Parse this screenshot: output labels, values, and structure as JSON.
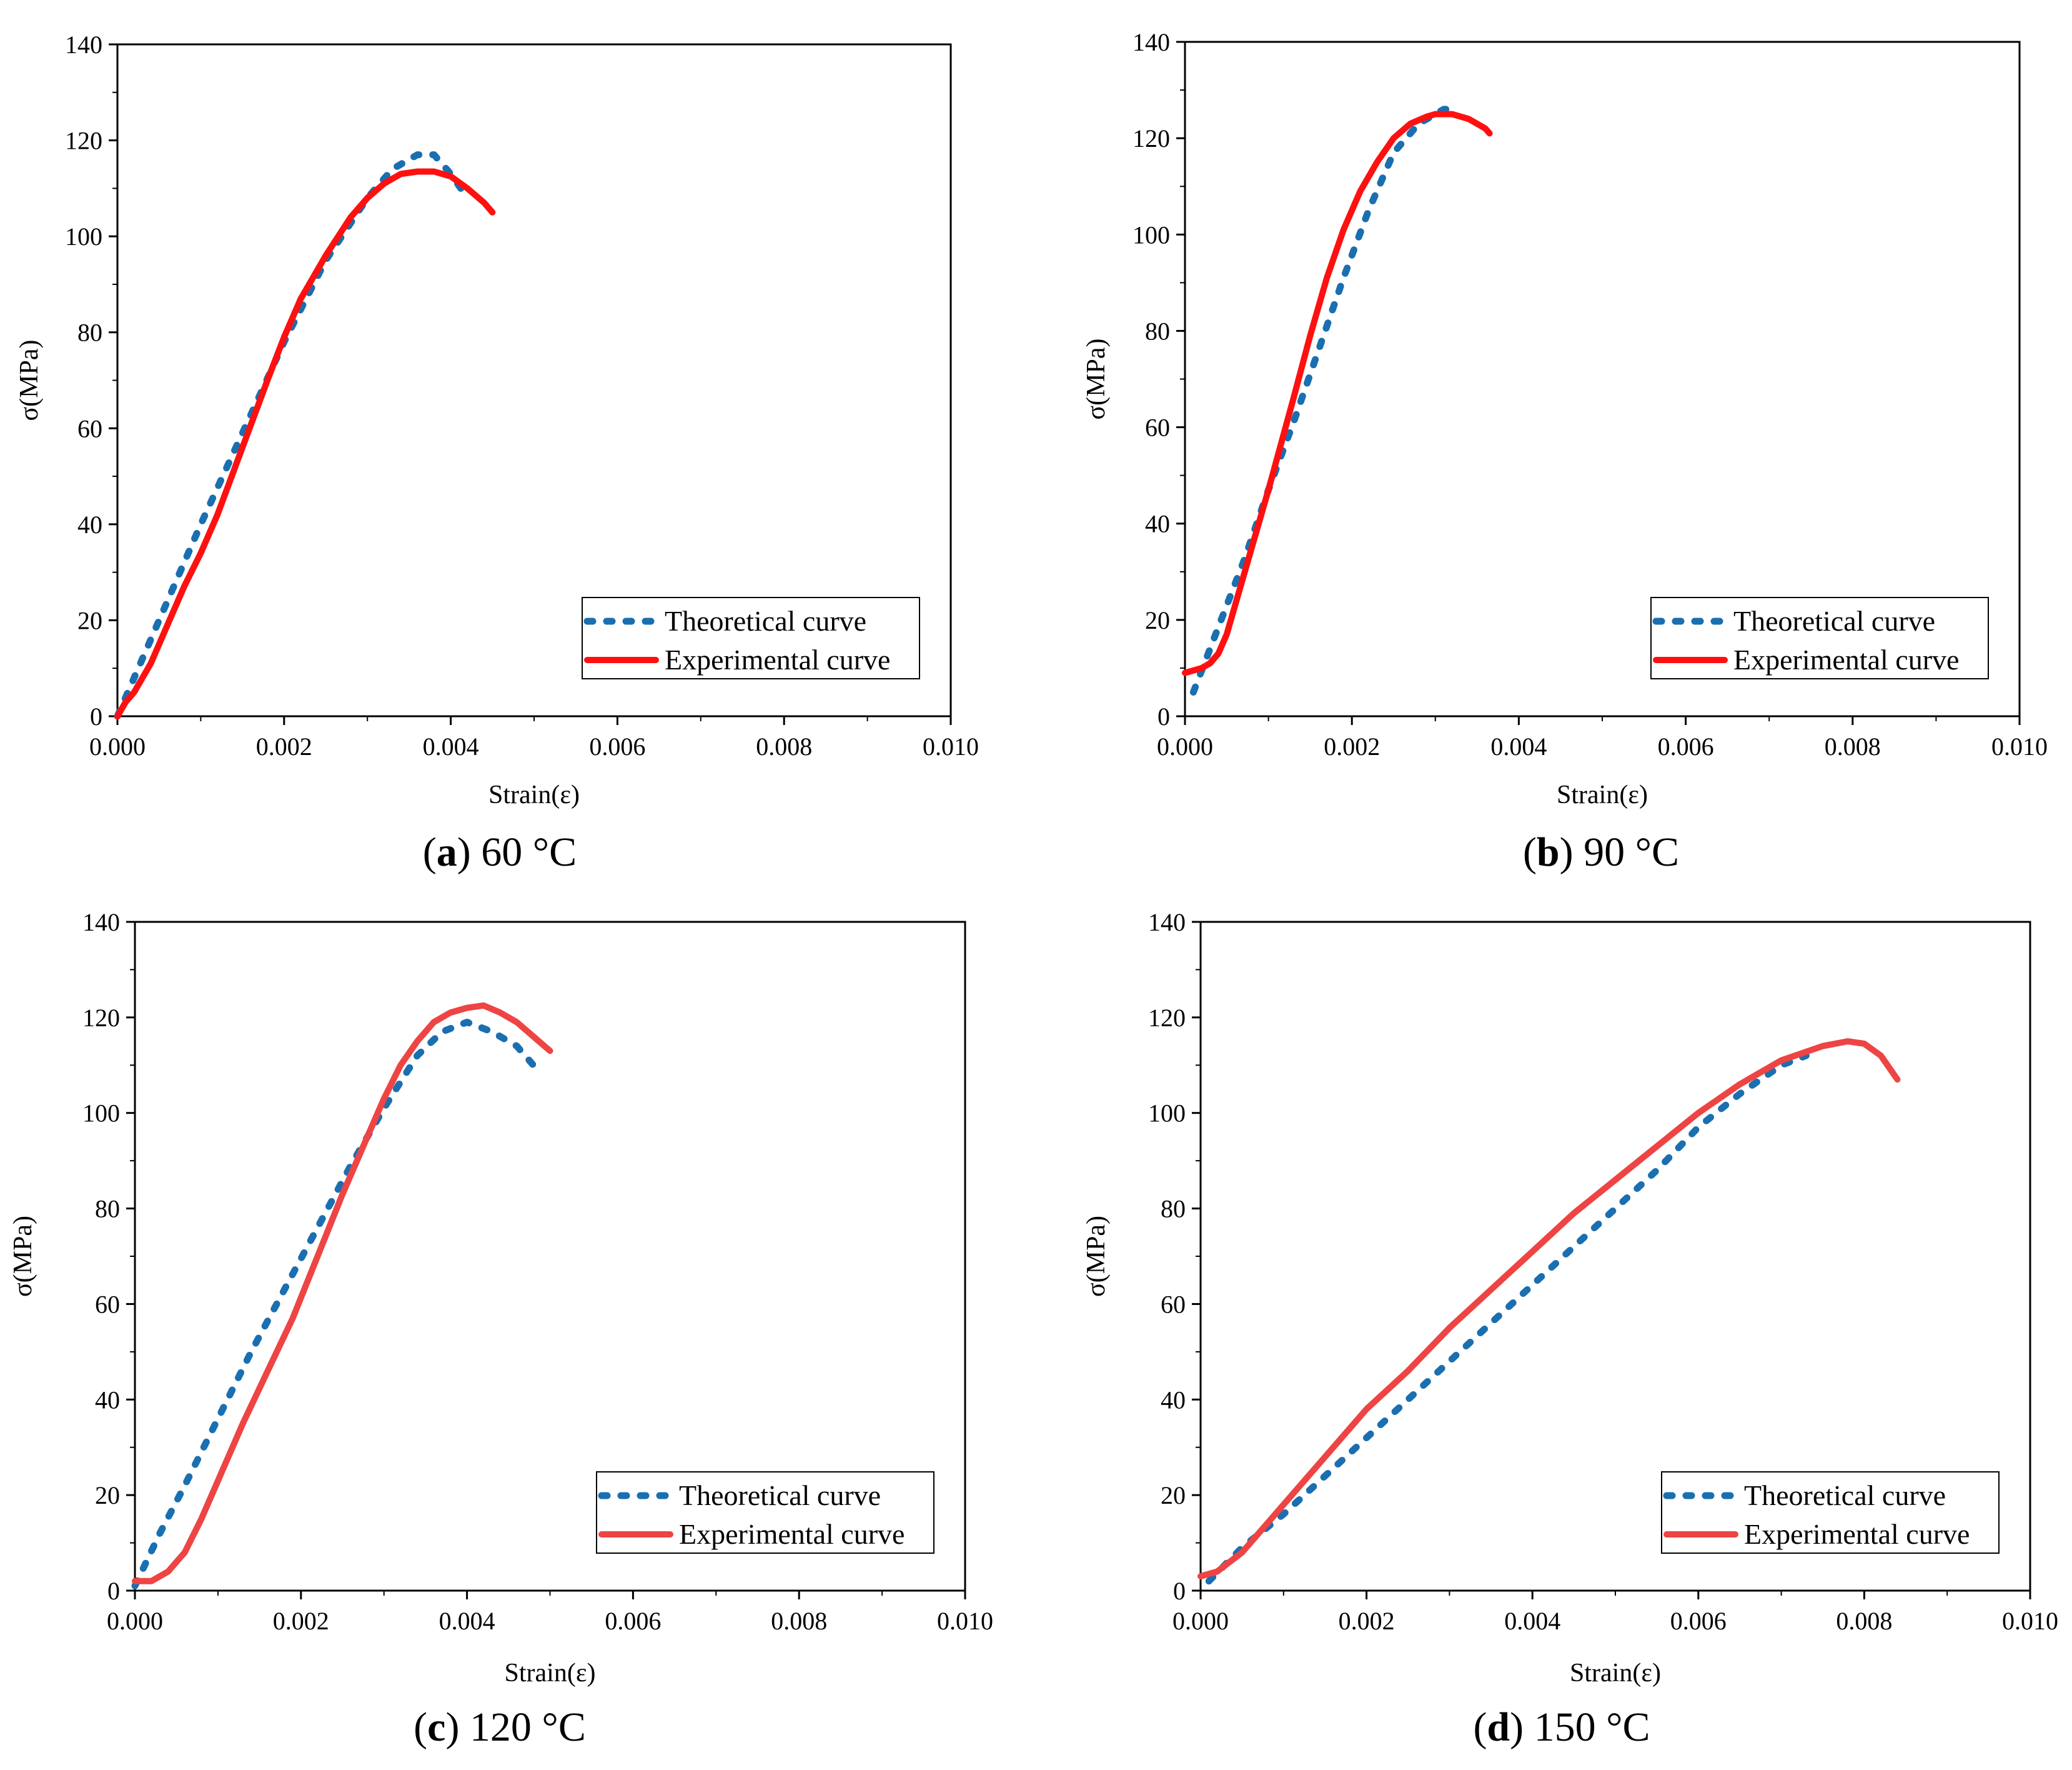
{
  "figure": {
    "colors": {
      "theoretical": "#1a6fb0",
      "experimental_a": "#ff1010",
      "experimental_b": "#ff1010",
      "experimental_c": "#ee4444",
      "experimental_d": "#ee4444"
    }
  },
  "chart_data": [
    {
      "type": "line",
      "panel": "a",
      "caption_letter": "a",
      "caption_text": "60 °C",
      "xlabel": "Strain(ε)",
      "ylabel": "σ(MPa)",
      "xlim": [
        0,
        0.01
      ],
      "ylim": [
        0,
        140
      ],
      "xticks": [
        "0.000",
        "0.002",
        "0.004",
        "0.006",
        "0.008",
        "0.010"
      ],
      "yticks": [
        "0",
        "20",
        "40",
        "60",
        "80",
        "100",
        "120",
        "140"
      ],
      "legend": [
        "Theoretical curve",
        "Experimental curve"
      ],
      "legend_position": "bottom-right",
      "series": [
        {
          "name": "Theoretical curve",
          "style": "dotted",
          "x": [
            0,
            0.0005,
            0.001,
            0.0015,
            0.002,
            0.0025,
            0.003,
            0.0033,
            0.0036,
            0.0038,
            0.004,
            0.0042
          ],
          "y": [
            0,
            20,
            40,
            59,
            78,
            95,
            108,
            114,
            117,
            117,
            113,
            108
          ]
        },
        {
          "name": "Experimental curve",
          "style": "solid",
          "x": [
            0,
            0.0001,
            0.0002,
            0.0004,
            0.0006,
            0.0008,
            0.001,
            0.0012,
            0.0015,
            0.0018,
            0.002,
            0.0022,
            0.0025,
            0.0028,
            0.003,
            0.0032,
            0.0034,
            0.0036,
            0.0038,
            0.004,
            0.0042,
            0.0044,
            0.0045
          ],
          "y": [
            0,
            3,
            5,
            11,
            19,
            27,
            34,
            42,
            56,
            70,
            79,
            87,
            96,
            104,
            108,
            111,
            113,
            113.5,
            113.5,
            112.5,
            110,
            107,
            105
          ]
        }
      ]
    },
    {
      "type": "line",
      "panel": "b",
      "caption_letter": "b",
      "caption_text": "90 °C",
      "xlabel": "Strain(ε)",
      "ylabel": "σ(MPa)",
      "xlim": [
        0,
        0.01
      ],
      "ylim": [
        0,
        140
      ],
      "xticks": [
        "0.000",
        "0.002",
        "0.004",
        "0.006",
        "0.008",
        "0.010"
      ],
      "yticks": [
        "0",
        "20",
        "40",
        "60",
        "80",
        "100",
        "120",
        "140"
      ],
      "legend": [
        "Theoretical curve",
        "Experimental curve"
      ],
      "legend_position": "bottom-right",
      "series": [
        {
          "name": "Theoretical curve",
          "style": "dotted",
          "x": [
            0.0001,
            0.0003,
            0.0005,
            0.0007,
            0.001,
            0.0013,
            0.0016,
            0.0019,
            0.0022,
            0.0025,
            0.0028,
            0.003,
            0.0031,
            0.0032
          ],
          "y": [
            5,
            14,
            23,
            32,
            47,
            61,
            76,
            91,
            105,
            117,
            123,
            125,
            126,
            126
          ]
        },
        {
          "name": "Experimental curve",
          "style": "solid",
          "x": [
            0,
            0.0002,
            0.0003,
            0.0004,
            0.0005,
            0.0007,
            0.001,
            0.0013,
            0.0015,
            0.0017,
            0.0019,
            0.0021,
            0.0023,
            0.0025,
            0.0027,
            0.0029,
            0.003,
            0.0032,
            0.0034,
            0.0036,
            0.00365
          ],
          "y": [
            9,
            10,
            11,
            13,
            17,
            29,
            47,
            66,
            79,
            91,
            101,
            109,
            115,
            120,
            123,
            124.5,
            125,
            125,
            124,
            122,
            121
          ]
        }
      ]
    },
    {
      "type": "line",
      "panel": "c",
      "caption_letter": "c",
      "caption_text": "120 °C",
      "xlabel": "Strain(ε)",
      "ylabel": "σ(MPa)",
      "xlim": [
        0,
        0.01
      ],
      "ylim": [
        0,
        140
      ],
      "xticks": [
        "0.000",
        "0.002",
        "0.004",
        "0.006",
        "0.008",
        "0.010"
      ],
      "yticks": [
        "0",
        "20",
        "40",
        "60",
        "80",
        "100",
        "120",
        "140"
      ],
      "legend": [
        "Theoretical curve",
        "Experimental curve"
      ],
      "legend_position": "bottom-right",
      "series": [
        {
          "name": "Theoretical curve",
          "style": "dotted",
          "x": [
            0,
            0.0003,
            0.0006,
            0.001,
            0.0014,
            0.0018,
            0.0022,
            0.0026,
            0.003,
            0.0034,
            0.0037,
            0.004,
            0.0043,
            0.0046,
            0.0048
          ],
          "y": [
            1,
            12,
            22,
            36,
            50,
            63,
            76,
            89,
            101,
            112,
            117,
            119,
            117,
            114,
            110
          ]
        },
        {
          "name": "Experimental curve",
          "style": "solid",
          "x": [
            0,
            0.0002,
            0.0004,
            0.0006,
            0.0008,
            0.001,
            0.0013,
            0.0016,
            0.0019,
            0.0022,
            0.0025,
            0.0028,
            0.003,
            0.0032,
            0.0034,
            0.0036,
            0.0038,
            0.004,
            0.0042,
            0.0044,
            0.0046,
            0.0048,
            0.005
          ],
          "y": [
            2,
            2,
            4,
            8,
            15,
            23,
            35,
            46,
            57,
            70,
            83,
            95,
            103,
            110,
            115,
            119,
            121,
            122,
            122.5,
            121,
            119,
            116,
            113
          ]
        }
      ]
    },
    {
      "type": "line",
      "panel": "d",
      "caption_letter": "d",
      "caption_text": "150 °C",
      "xlabel": "Strain(ε)",
      "ylabel": "σ(MPa)",
      "xlim": [
        0,
        0.01
      ],
      "ylim": [
        0,
        140
      ],
      "xticks": [
        "0.000",
        "0.002",
        "0.004",
        "0.006",
        "0.008",
        "0.010"
      ],
      "yticks": [
        "0",
        "20",
        "40",
        "60",
        "80",
        "100",
        "120",
        "140"
      ],
      "legend": [
        "Theoretical curve",
        "Experimental curve"
      ],
      "legend_position": "bottom-right",
      "series": [
        {
          "name": "Theoretical curve",
          "style": "dotted",
          "x": [
            0.0001,
            0.0005,
            0.001,
            0.0015,
            0.002,
            0.0025,
            0.003,
            0.0035,
            0.004,
            0.0045,
            0.005,
            0.0055,
            0.006,
            0.0065,
            0.007,
            0.0073
          ],
          "y": [
            2,
            9,
            16,
            24,
            32,
            40,
            48,
            56,
            64,
            72,
            80,
            88,
            97,
            104,
            110,
            112
          ]
        },
        {
          "name": "Experimental curve",
          "style": "solid",
          "x": [
            0,
            0.0002,
            0.0005,
            0.001,
            0.0015,
            0.002,
            0.0025,
            0.003,
            0.0035,
            0.004,
            0.0045,
            0.005,
            0.0055,
            0.006,
            0.0065,
            0.007,
            0.0075,
            0.0078,
            0.008,
            0.0082,
            0.0084
          ],
          "y": [
            3,
            4,
            8,
            18,
            28,
            38,
            46,
            55,
            63,
            71,
            79,
            86,
            93,
            100,
            106,
            111,
            114,
            115,
            114.5,
            112,
            107
          ]
        }
      ]
    }
  ]
}
